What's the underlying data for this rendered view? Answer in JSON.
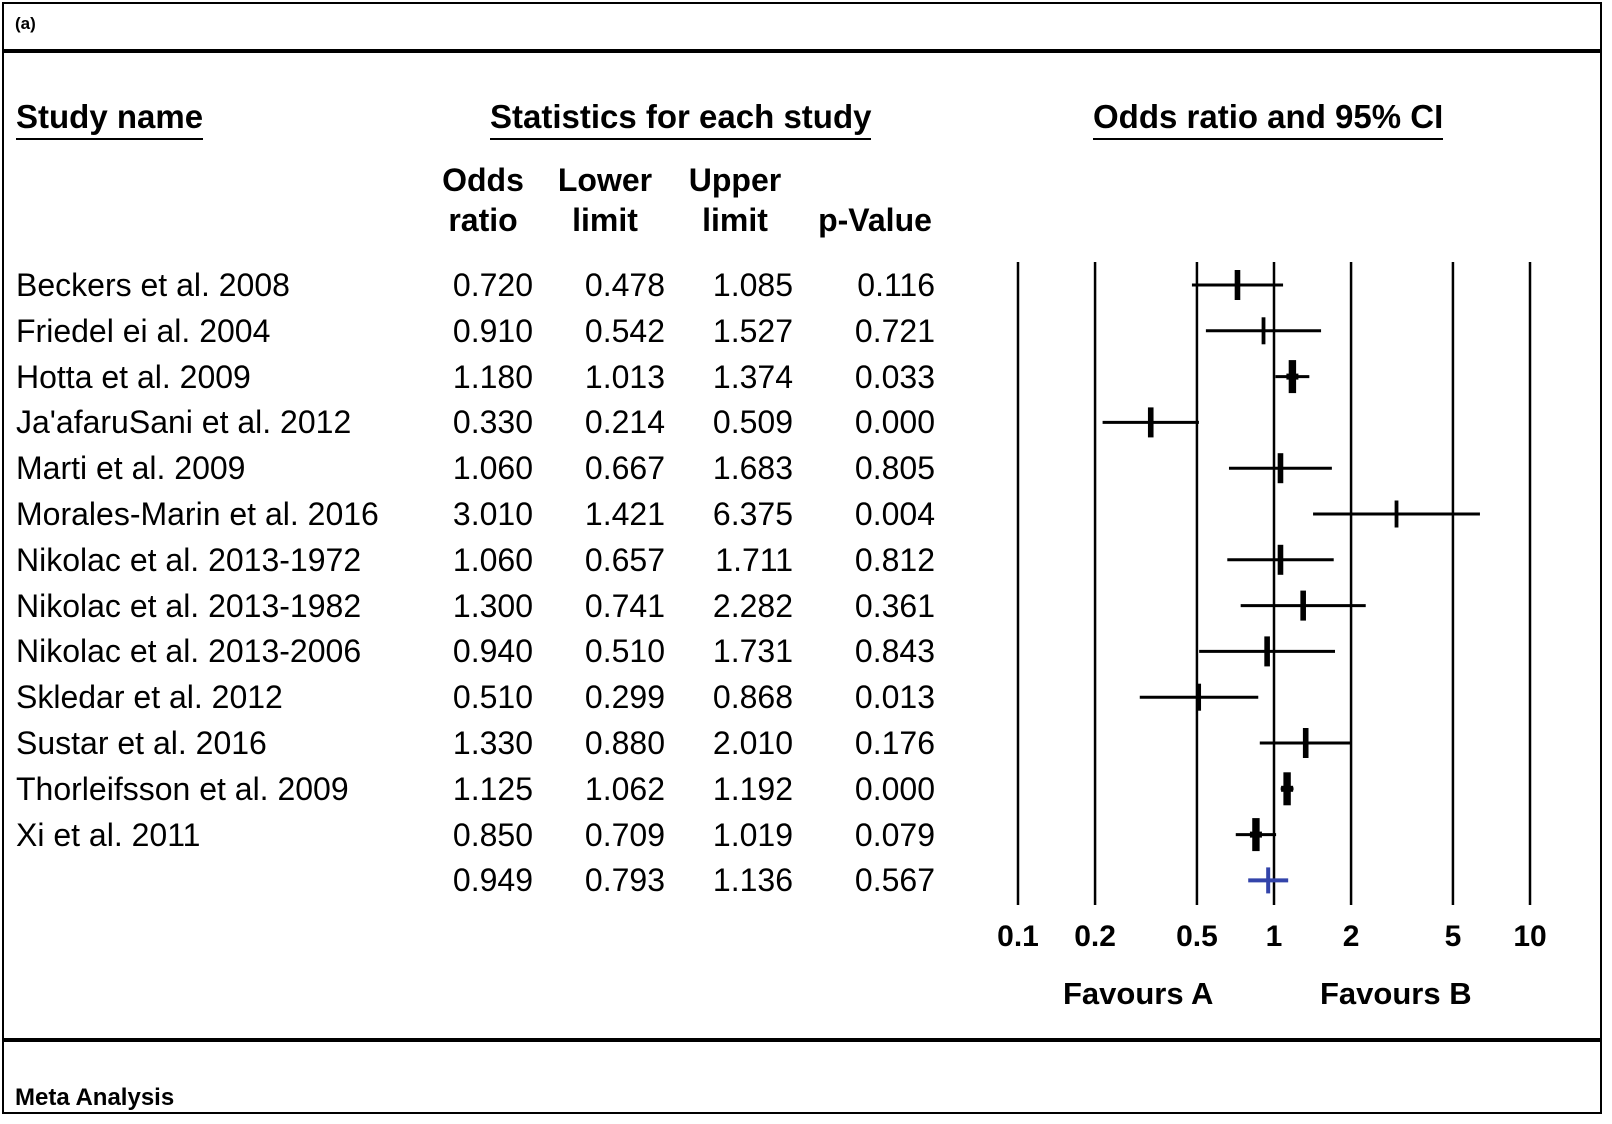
{
  "panel_label": "(a)",
  "footer": "Meta Analysis",
  "headers": {
    "study_name": "Study name",
    "statistics": "Statistics for each study",
    "plot": "Odds ratio and 95% CI",
    "odds_line1": "Odds",
    "odds_line2": "ratio",
    "lower_line1": "Lower",
    "lower_line2": "limit",
    "upper_line1": "Upper",
    "upper_line2": "limit",
    "pvalue": "p-Value"
  },
  "rows": [
    {
      "study": "Beckers et al. 2008",
      "or": "0.720",
      "lower": "0.478",
      "upper": "1.085",
      "p": "0.116"
    },
    {
      "study": "Friedel ei al. 2004",
      "or": "0.910",
      "lower": "0.542",
      "upper": "1.527",
      "p": "0.721"
    },
    {
      "study": "Hotta et al. 2009",
      "or": "1.180",
      "lower": "1.013",
      "upper": "1.374",
      "p": "0.033"
    },
    {
      "study": "Ja'afaruSani et al. 2012",
      "or": "0.330",
      "lower": "0.214",
      "upper": "0.509",
      "p": "0.000"
    },
    {
      "study": "Marti et al. 2009",
      "or": "1.060",
      "lower": "0.667",
      "upper": "1.683",
      "p": "0.805"
    },
    {
      "study": "Morales-Marin et al. 2016",
      "or": "3.010",
      "lower": "1.421",
      "upper": "6.375",
      "p": "0.004"
    },
    {
      "study": "Nikolac et al. 2013-1972",
      "or": "1.060",
      "lower": "0.657",
      "upper": "1.711",
      "p": "0.812"
    },
    {
      "study": "Nikolac et al. 2013-1982",
      "or": "1.300",
      "lower": "0.741",
      "upper": "2.282",
      "p": "0.361"
    },
    {
      "study": "Nikolac et al. 2013-2006",
      "or": "0.940",
      "lower": "0.510",
      "upper": "1.731",
      "p": "0.843"
    },
    {
      "study": "Skledar et al. 2012",
      "or": "0.510",
      "lower": "0.299",
      "upper": "0.868",
      "p": "0.013"
    },
    {
      "study": "Sustar et al. 2016",
      "or": "1.330",
      "lower": "0.880",
      "upper": "2.010",
      "p": "0.176"
    },
    {
      "study": "Thorleifsson et al. 2009",
      "or": "1.125",
      "lower": "1.062",
      "upper": "1.192",
      "p": "0.000"
    },
    {
      "study": "Xi et al. 2011",
      "or": "0.850",
      "lower": "0.709",
      "upper": "1.019",
      "p": "0.079"
    },
    {
      "study": "",
      "or": "0.949",
      "lower": "0.793",
      "upper": "1.136",
      "p": "0.567"
    }
  ],
  "favours": {
    "left": "Favours A",
    "right": "Favours B"
  },
  "chart_data": {
    "type": "forest",
    "scale": "log",
    "xlim": [
      0.1,
      10
    ],
    "ticks": [
      0.1,
      0.2,
      0.5,
      1,
      2,
      5,
      10
    ],
    "tick_labels": [
      "0.1",
      "0.2",
      "0.5",
      "1",
      "2",
      "5",
      "10"
    ],
    "reference_lines": [
      0.1,
      0.2,
      0.5,
      1,
      2,
      5,
      10
    ],
    "colors": {
      "study": "#000000",
      "summary": "#3344aa"
    },
    "studies": [
      {
        "name": "Beckers et al. 2008",
        "or": 0.72,
        "lower": 0.478,
        "upper": 1.085,
        "weight": 2
      },
      {
        "name": "Friedel ei al. 2004",
        "or": 0.91,
        "lower": 0.542,
        "upper": 1.527,
        "weight": 1
      },
      {
        "name": "Hotta et al. 2009",
        "or": 1.18,
        "lower": 1.013,
        "upper": 1.374,
        "weight": 3
      },
      {
        "name": "Ja'afaruSani et al. 2012",
        "or": 0.33,
        "lower": 0.214,
        "upper": 0.509,
        "weight": 2
      },
      {
        "name": "Marti et al. 2009",
        "or": 1.06,
        "lower": 0.667,
        "upper": 1.683,
        "weight": 2
      },
      {
        "name": "Morales-Marin et al. 2016",
        "or": 3.01,
        "lower": 1.421,
        "upper": 6.375,
        "weight": 1
      },
      {
        "name": "Nikolac et al. 2013-1972",
        "or": 1.06,
        "lower": 0.657,
        "upper": 1.711,
        "weight": 2
      },
      {
        "name": "Nikolac et al. 2013-1982",
        "or": 1.3,
        "lower": 0.741,
        "upper": 2.282,
        "weight": 2
      },
      {
        "name": "Nikolac et al. 2013-2006",
        "or": 0.94,
        "lower": 0.51,
        "upper": 1.731,
        "weight": 2
      },
      {
        "name": "Skledar et al. 2012",
        "or": 0.51,
        "lower": 0.299,
        "upper": 0.868,
        "weight": 1
      },
      {
        "name": "Sustar et al. 2016",
        "or": 1.33,
        "lower": 0.88,
        "upper": 2.01,
        "weight": 2
      },
      {
        "name": "Thorleifsson et al. 2009",
        "or": 1.125,
        "lower": 1.062,
        "upper": 1.192,
        "weight": 3
      },
      {
        "name": "Xi et al. 2011",
        "or": 0.85,
        "lower": 0.709,
        "upper": 1.019,
        "weight": 3
      }
    ],
    "summary": {
      "or": 0.949,
      "lower": 0.793,
      "upper": 1.136,
      "p": 0.567
    }
  }
}
